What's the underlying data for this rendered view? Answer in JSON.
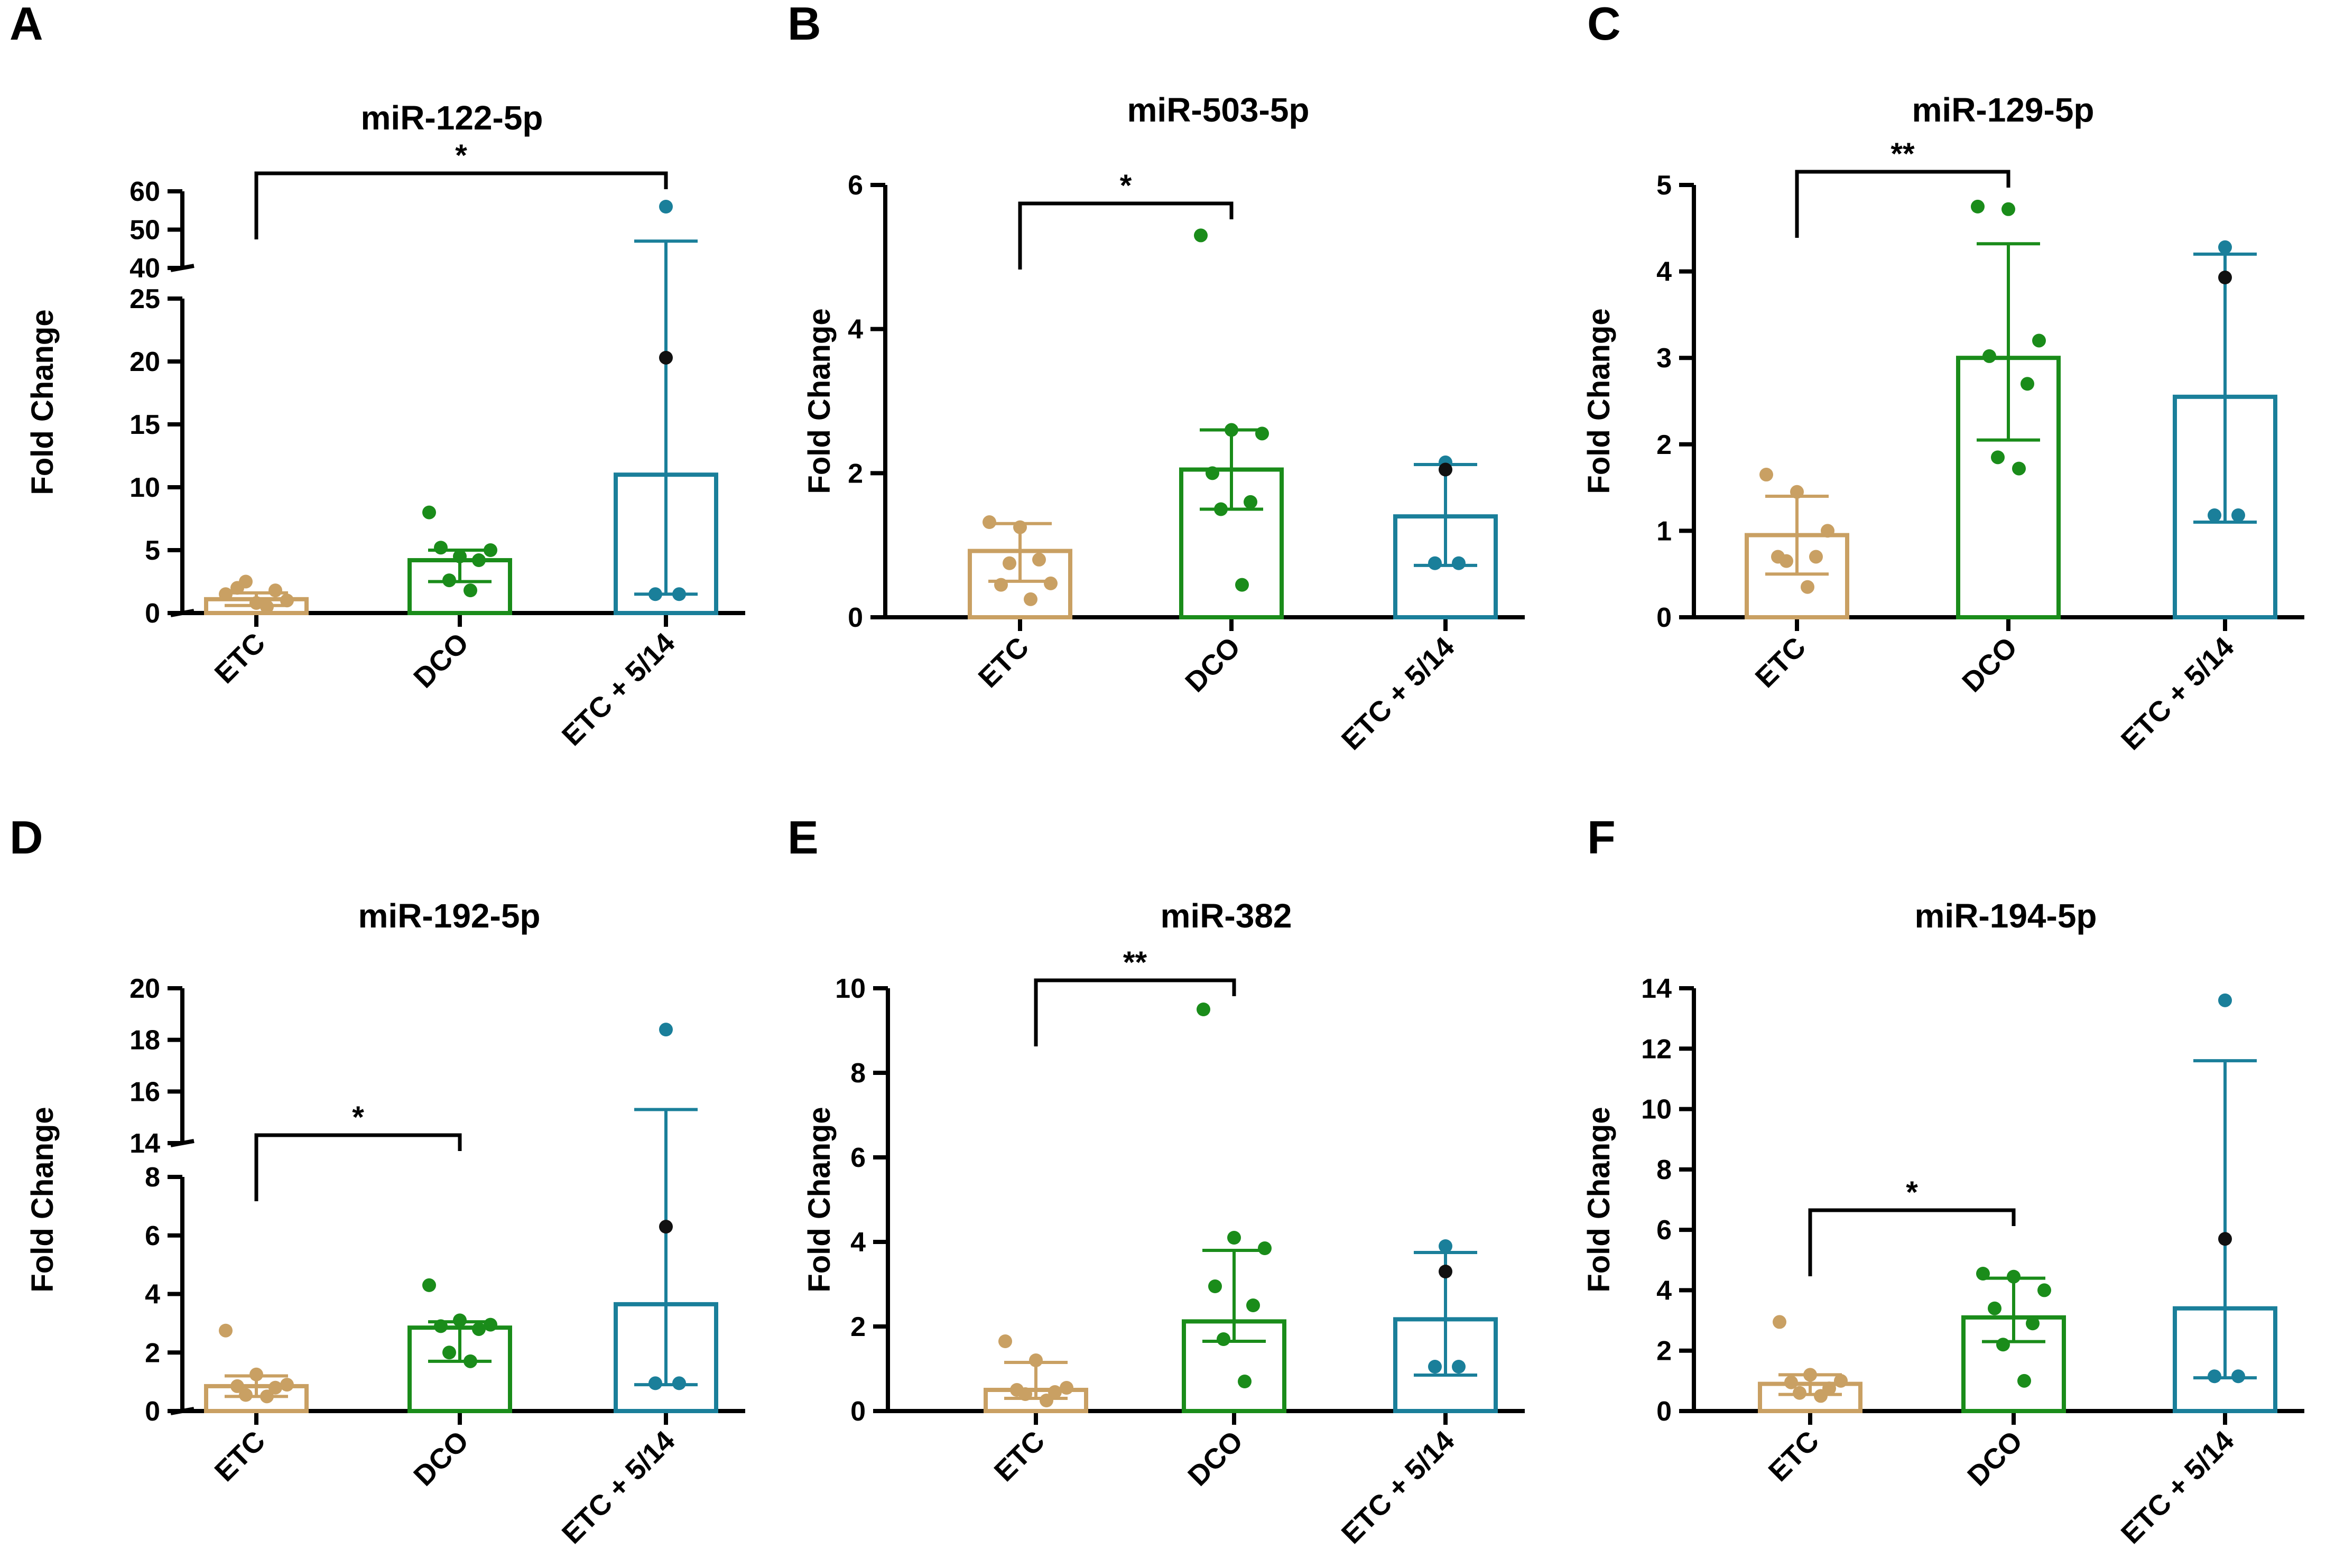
{
  "chart_data": [
    {
      "panel": "A",
      "type": "bar",
      "title": "miR-122-5p",
      "ylabel": "Fold Change",
      "categories": [
        "ETC",
        "DCO",
        "ETC + 5/14"
      ],
      "colors": [
        "#c9a063",
        "#1a8c1a",
        "#1a7f9a"
      ],
      "axis": {
        "lower": {
          "range": [
            0,
            25
          ],
          "ticks": [
            0,
            5,
            10,
            15,
            20,
            25
          ]
        },
        "upper": {
          "range": [
            40,
            60
          ],
          "ticks": [
            40,
            50,
            60
          ]
        }
      },
      "bars": [
        {
          "mean": 1.1,
          "err": [
            0.6,
            1.6
          ]
        },
        {
          "mean": 4.2,
          "err": [
            2.5,
            5.0
          ]
        },
        {
          "mean": 11.0,
          "err": [
            1.5,
            47.0
          ]
        }
      ],
      "points": [
        [
          1.5,
          0.8,
          1.0,
          2.0,
          1.8,
          2.5,
          0.5
        ],
        [
          8.0,
          4.5,
          5.0,
          5.2,
          4.2,
          2.6,
          1.8
        ],
        [
          56.0,
          20.3,
          1.5
        ]
      ],
      "black_point_values": [
        20.3
      ],
      "significance": {
        "from": "ETC",
        "to": "ETC + 5/14",
        "label": "*"
      }
    },
    {
      "panel": "B",
      "type": "bar",
      "title": "miR-503-5p",
      "ylabel": "Fold Change",
      "categories": [
        "ETC",
        "DCO",
        "ETC + 5/14"
      ],
      "colors": [
        "#c9a063",
        "#1a8c1a",
        "#1a7f9a"
      ],
      "axis": {
        "lower": {
          "range": [
            0,
            6
          ],
          "ticks": [
            0,
            2,
            4,
            6
          ]
        }
      },
      "bars": [
        {
          "mean": 0.92,
          "err": [
            0.5,
            1.3
          ]
        },
        {
          "mean": 2.05,
          "err": [
            1.5,
            2.6
          ]
        },
        {
          "mean": 1.4,
          "err": [
            0.72,
            2.12
          ]
        }
      ],
      "points": [
        [
          1.32,
          1.25,
          0.47,
          0.45,
          0.8,
          0.75,
          0.25
        ],
        [
          5.3,
          2.6,
          2.55,
          2.0,
          1.6,
          1.5,
          0.45
        ],
        [
          2.15,
          2.05,
          0.75
        ]
      ],
      "black_point_values": [
        2.05
      ],
      "significance": {
        "from": "ETC",
        "to": "DCO",
        "label": "*"
      }
    },
    {
      "panel": "C",
      "type": "bar",
      "title": "miR-129-5p",
      "ylabel": "Fold Change",
      "categories": [
        "ETC",
        "DCO",
        "ETC + 5/14"
      ],
      "colors": [
        "#c9a063",
        "#1a8c1a",
        "#1a7f9a"
      ],
      "axis": {
        "lower": {
          "range": [
            0,
            5
          ],
          "ticks": [
            0,
            1,
            2,
            3,
            4,
            5
          ]
        }
      },
      "bars": [
        {
          "mean": 0.95,
          "err": [
            0.5,
            1.4
          ]
        },
        {
          "mean": 3.0,
          "err": [
            2.05,
            4.32
          ]
        },
        {
          "mean": 2.55,
          "err": [
            1.1,
            4.2
          ]
        }
      ],
      "points": [
        [
          1.65,
          1.45,
          1.0,
          0.7,
          0.7,
          0.65,
          0.35
        ],
        [
          4.75,
          4.72,
          3.2,
          3.02,
          2.7,
          1.85,
          1.72
        ],
        [
          4.28,
          3.93,
          1.18
        ]
      ],
      "black_point_values": [
        3.93
      ],
      "significance": {
        "from": "ETC",
        "to": "DCO",
        "label": "**"
      }
    },
    {
      "panel": "D",
      "type": "bar",
      "title": "miR-192-5p",
      "ylabel": "Fold Change",
      "categories": [
        "ETC",
        "DCO",
        "ETC + 5/14"
      ],
      "colors": [
        "#c9a063",
        "#1a8c1a",
        "#1a7f9a"
      ],
      "axis": {
        "lower": {
          "range": [
            0,
            8
          ],
          "ticks": [
            0,
            2,
            4,
            6,
            8
          ]
        },
        "upper": {
          "range": [
            14,
            20
          ],
          "ticks": [
            14,
            16,
            18,
            20
          ]
        }
      },
      "bars": [
        {
          "mean": 0.85,
          "err": [
            0.5,
            1.2
          ]
        },
        {
          "mean": 2.85,
          "err": [
            1.7,
            3.05
          ]
        },
        {
          "mean": 3.65,
          "err": [
            0.9,
            15.3
          ]
        }
      ],
      "points": [
        [
          2.75,
          1.25,
          0.9,
          0.85,
          0.8,
          0.55,
          0.5
        ],
        [
          4.3,
          3.1,
          2.95,
          2.9,
          2.8,
          2.0,
          1.7
        ],
        [
          18.4,
          6.3,
          0.95
        ]
      ],
      "black_point_values": [
        6.3
      ],
      "significance": {
        "from": "ETC",
        "to": "DCO",
        "label": "*"
      }
    },
    {
      "panel": "E",
      "type": "bar",
      "title": "miR-382",
      "ylabel": "Fold Change",
      "categories": [
        "ETC",
        "DCO",
        "ETC + 5/14"
      ],
      "colors": [
        "#c9a063",
        "#1a8c1a",
        "#1a7f9a"
      ],
      "axis": {
        "lower": {
          "range": [
            0,
            10
          ],
          "ticks": [
            0,
            2,
            4,
            6,
            8,
            10
          ]
        }
      },
      "bars": [
        {
          "mean": 0.5,
          "err": [
            0.3,
            1.15
          ]
        },
        {
          "mean": 2.12,
          "err": [
            1.65,
            3.8
          ]
        },
        {
          "mean": 2.17,
          "err": [
            0.85,
            3.75
          ]
        }
      ],
      "points": [
        [
          1.65,
          1.2,
          0.55,
          0.5,
          0.45,
          0.4,
          0.25
        ],
        [
          9.5,
          4.1,
          3.85,
          2.95,
          2.5,
          1.7,
          0.7
        ],
        [
          3.9,
          3.3,
          1.05
        ]
      ],
      "black_point_values": [
        3.3
      ],
      "significance": {
        "from": "ETC",
        "to": "DCO",
        "label": "**"
      }
    },
    {
      "panel": "F",
      "type": "bar",
      "title": "miR-194-5p",
      "ylabel": "Fold Change",
      "categories": [
        "ETC",
        "DCO",
        "ETC + 5/14"
      ],
      "colors": [
        "#c9a063",
        "#1a8c1a",
        "#1a7f9a"
      ],
      "axis": {
        "lower": {
          "range": [
            0,
            14
          ],
          "ticks": [
            0,
            2,
            4,
            6,
            8,
            10,
            12,
            14
          ]
        }
      },
      "bars": [
        {
          "mean": 0.9,
          "err": [
            0.55,
            1.2
          ]
        },
        {
          "mean": 3.1,
          "err": [
            2.3,
            4.4
          ]
        },
        {
          "mean": 3.4,
          "err": [
            1.1,
            11.6
          ]
        }
      ],
      "points": [
        [
          2.95,
          1.2,
          1.0,
          0.95,
          0.75,
          0.6,
          0.5
        ],
        [
          4.55,
          4.45,
          4.0,
          3.4,
          2.9,
          2.2,
          1.0
        ],
        [
          13.6,
          5.7,
          1.15
        ]
      ],
      "black_point_values": [
        5.7
      ],
      "significance": {
        "from": "ETC",
        "to": "DCO",
        "label": "*"
      }
    }
  ]
}
